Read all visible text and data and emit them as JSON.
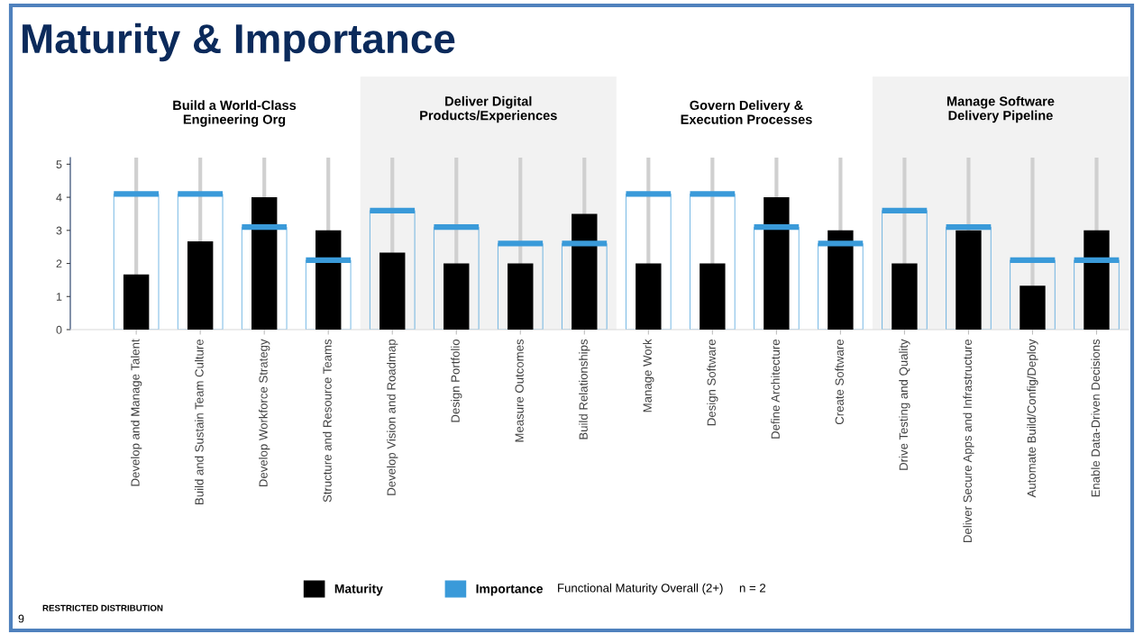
{
  "chart_data": {
    "type": "bar",
    "title": "Maturity & Importance",
    "categories": [
      "Develop and Manage Talent",
      "Build and Sustain Team Culture",
      "Develop Workforce Strategy",
      "Structure and Resource Teams",
      "Develop Vision and Roadmap",
      "Design Portfolio",
      "Measure Outcomes",
      "Build Relationships",
      "Manage Work",
      "Design Software",
      "Define Architecture",
      "Create Software",
      "Drive Testing and Quality",
      "Deliver Secure Apps and Infrastructure",
      "Automate Build/Config/Deploy",
      "Enable Data-Driven Decisions"
    ],
    "series": [
      {
        "name": "Importance",
        "color": "#3a9ad9",
        "values": [
          4.1,
          4.1,
          3.1,
          2.1,
          3.6,
          3.1,
          2.6,
          2.6,
          4.1,
          4.1,
          3.1,
          2.6,
          3.6,
          3.1,
          2.1,
          2.1
        ]
      },
      {
        "name": "Maturity",
        "color": "#000000",
        "values": [
          1.67,
          2.67,
          4.0,
          3.0,
          2.33,
          2.0,
          2.0,
          3.5,
          2.0,
          2.0,
          4.0,
          3.0,
          2.0,
          3.0,
          1.33,
          3.0
        ]
      }
    ],
    "ylim": [
      0,
      5.2
    ],
    "yticks": [
      0,
      1,
      2,
      3,
      4,
      5
    ],
    "grid": "x",
    "legend": "bottom",
    "bands": [
      {
        "axis": "x",
        "from": "Develop Vision and Roadmap",
        "to": "Build Relationships",
        "label": "Deliver Digital\nProducts/Experiences",
        "color": "#f2f2f2"
      },
      {
        "axis": "x",
        "from": "Drive Testing and Quality",
        "to": "Enable Data-Driven Decisions",
        "label": "Manage Software\nDelivery Pipeline",
        "color": "#f2f2f2"
      }
    ],
    "annotations": [
      "Build a World-Class\nEngineering Org",
      "Govern Delivery &\nExecution Processes",
      "Functional Maturity Overall (2+)",
      "n = 2",
      "RESTRICTED DISTRIBUTION",
      "9"
    ]
  }
}
